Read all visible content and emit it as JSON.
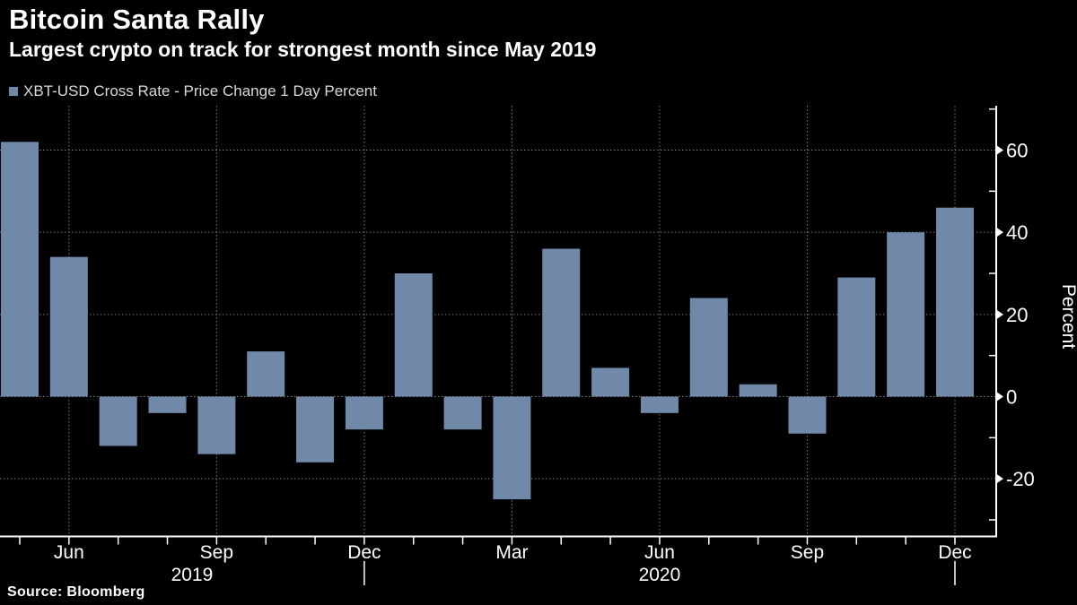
{
  "header": {
    "title": "Bitcoin Santa Rally",
    "subtitle": "Largest crypto on track for strongest month since May 2019"
  },
  "legend": {
    "label": "XBT-USD Cross Rate - Price Change 1 Day Percent"
  },
  "source": "Source: Bloomberg",
  "colors": {
    "background": "#000000",
    "bar": "#7189a8",
    "grid": "#7d7d7d",
    "axis": "#ffffff",
    "tick_text": "#ffffff",
    "legend_text": "#d9d9d9"
  },
  "chart_data": {
    "type": "bar",
    "title": "Bitcoin Santa Rally",
    "series_name": "XBT-USD Cross Rate - Price Change 1 Day Percent",
    "x": [
      "May 2019",
      "Jun 2019",
      "Jul 2019",
      "Aug 2019",
      "Sep 2019",
      "Oct 2019",
      "Nov 2019",
      "Dec 2019",
      "Jan 2020",
      "Feb 2020",
      "Mar 2020",
      "Apr 2020",
      "May 2020",
      "Jun 2020",
      "Jul 2020",
      "Aug 2020",
      "Sep 2020",
      "Oct 2020",
      "Nov 2020",
      "Dec 2020"
    ],
    "values": [
      62,
      34,
      -12,
      -4,
      -14,
      11,
      -16,
      -8,
      30,
      -8,
      -25,
      36,
      7,
      -4,
      24,
      3,
      -9,
      29,
      40,
      46
    ],
    "xlabel": "",
    "ylabel": "Percent",
    "ylim": [
      -34,
      71
    ],
    "y_major_ticks": [
      60,
      40,
      20,
      0,
      -20
    ],
    "y_minor_ticks": [
      70,
      50,
      30,
      10,
      -10,
      -30
    ],
    "grid": true,
    "grid_style": "dotted",
    "legend_position": "top-left",
    "x_quarter_ticks": [
      {
        "index": 1,
        "label": "Jun"
      },
      {
        "index": 4,
        "label": "Sep"
      },
      {
        "index": 7,
        "label": "Dec"
      },
      {
        "index": 10,
        "label": "Mar"
      },
      {
        "index": 13,
        "label": "Jun"
      },
      {
        "index": 16,
        "label": "Sep"
      },
      {
        "index": 19,
        "label": "Dec"
      }
    ],
    "years": [
      {
        "label": "2019",
        "separator_index": 7
      },
      {
        "label": "2020",
        "separator_index": 19
      }
    ]
  }
}
